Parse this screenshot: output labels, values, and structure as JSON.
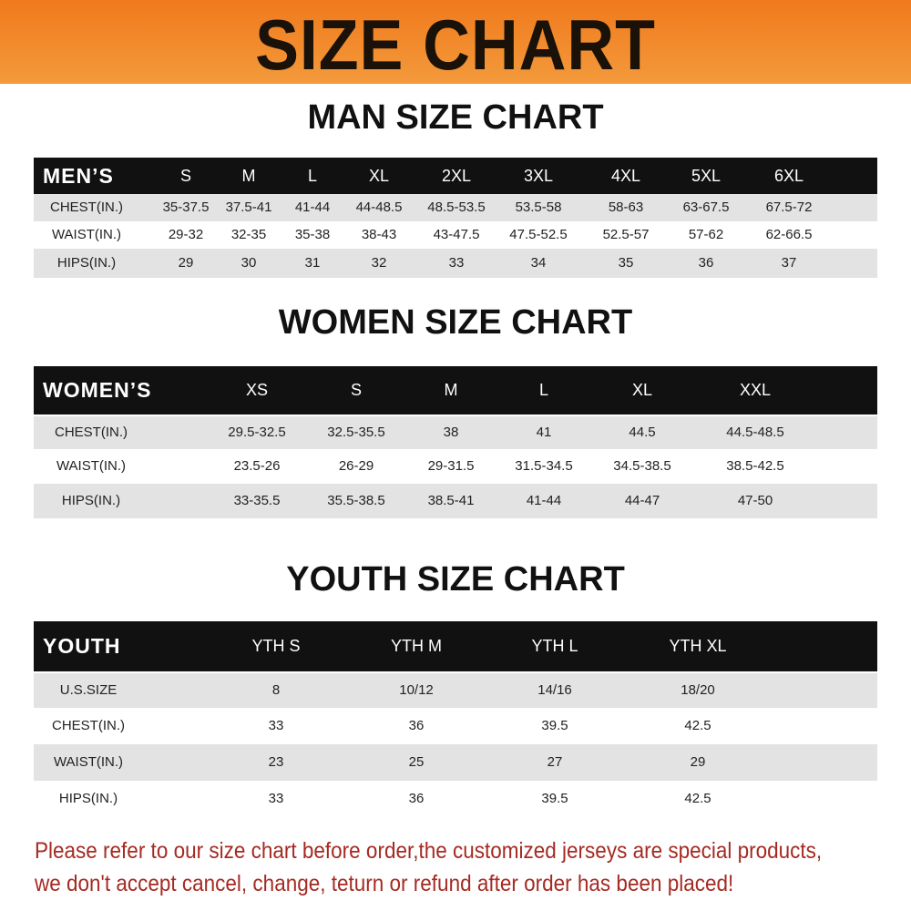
{
  "banner": "SIZE CHART",
  "men": {
    "title": "MAN SIZE CHART",
    "header": [
      "MEN’S",
      "S",
      "M",
      "L",
      "XL",
      "2XL",
      "3XL",
      "4XL",
      "5XL",
      "6XL"
    ],
    "rows": [
      [
        "CHEST(IN.)",
        "35-37.5",
        "37.5-41",
        "41-44",
        "44-48.5",
        "48.5-53.5",
        "53.5-58",
        "58-63",
        "63-67.5",
        "67.5-72"
      ],
      [
        "WAIST(IN.)",
        "29-32",
        "32-35",
        "35-38",
        "38-43",
        "43-47.5",
        "47.5-52.5",
        "52.5-57",
        "57-62",
        "62-66.5"
      ],
      [
        "HIPS(IN.)",
        "29",
        "30",
        "31",
        "32",
        "33",
        "34",
        "35",
        "36",
        "37"
      ]
    ]
  },
  "women": {
    "title": "WOMEN SIZE CHART",
    "header": [
      "WOMEN’S",
      "XS",
      "S",
      "M",
      "L",
      "XL",
      "XXL"
    ],
    "rows": [
      [
        "CHEST(IN.)",
        "29.5-32.5",
        "32.5-35.5",
        "38",
        "41",
        "44.5",
        "44.5-48.5"
      ],
      [
        "WAIST(IN.)",
        "23.5-26",
        "26-29",
        "29-31.5",
        "31.5-34.5",
        "34.5-38.5",
        "38.5-42.5"
      ],
      [
        "HIPS(IN.)",
        "33-35.5",
        "35.5-38.5",
        "38.5-41",
        "41-44",
        "44-47",
        "47-50"
      ]
    ]
  },
  "youth": {
    "title": "YOUTH SIZE CHART",
    "header": [
      "YOUTH",
      "YTH S",
      "YTH M",
      "YTH L",
      "YTH XL"
    ],
    "rows": [
      [
        "U.S.SIZE",
        "8",
        "10/12",
        "14/16",
        "18/20"
      ],
      [
        "CHEST(IN.)",
        "33",
        "36",
        "39.5",
        "42.5"
      ],
      [
        "WAIST(IN.)",
        "23",
        "25",
        "27",
        "29"
      ],
      [
        "HIPS(IN.)",
        "33",
        "36",
        "39.5",
        "42.5"
      ]
    ]
  },
  "note": {
    "line1": "Please refer to our size chart before order,the customized jerseys are special products,",
    "line2": "we don't accept cancel, change, teturn or refund after order has been placed!"
  },
  "colors": {
    "banner": "#f07a1c",
    "header": "#111111",
    "stripe": "#e3e3e3",
    "note": "#a52a22"
  }
}
